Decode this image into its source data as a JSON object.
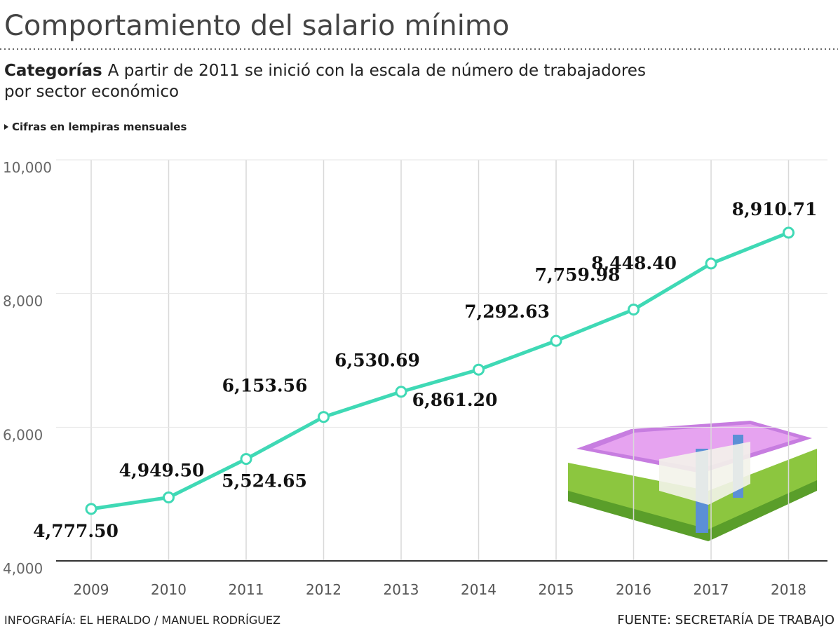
{
  "chart_data": {
    "type": "line",
    "title": "Comportamiento del salario mínimo",
    "subtitle_lead": "Categorías",
    "subtitle": "A partir de 2011 se inició con la escala de número de trabajadores",
    "subtitle_line2": "por sector económico",
    "note": "Cifras en lempiras mensuales",
    "categories": [
      "2009",
      "2010",
      "2011",
      "2012",
      "2013",
      "2014",
      "2015",
      "2016",
      "2017",
      "2018"
    ],
    "series": [
      {
        "name": "Salario mínimo",
        "color": "#3fd9b5",
        "values": [
          4777.5,
          4949.5,
          5524.65,
          6153.56,
          6530.69,
          6861.2,
          7292.63,
          7759.98,
          8448.4,
          8910.71
        ],
        "value_labels": [
          "4,777.50",
          "4,949.50",
          "5,524.65",
          "6,153.56",
          "6,530.69",
          "6,861.20",
          "7,292.63",
          "7,759.98",
          "8,448.40",
          "8,910.71"
        ]
      }
    ],
    "ylim": [
      4000,
      10000
    ],
    "yticks": [
      {
        "value": 4000,
        "label": "4,000"
      },
      {
        "value": 6000,
        "label": "6,000"
      },
      {
        "value": 8000,
        "label": "8,000"
      },
      {
        "value": 10000,
        "label": "10,000"
      }
    ],
    "grid": true,
    "credit": "INFOGRAFÍA: EL HERALDO / MANUEL RODRÍGUEZ",
    "source": "FUENTE: SECRETARÍA DE TRABAJO"
  }
}
